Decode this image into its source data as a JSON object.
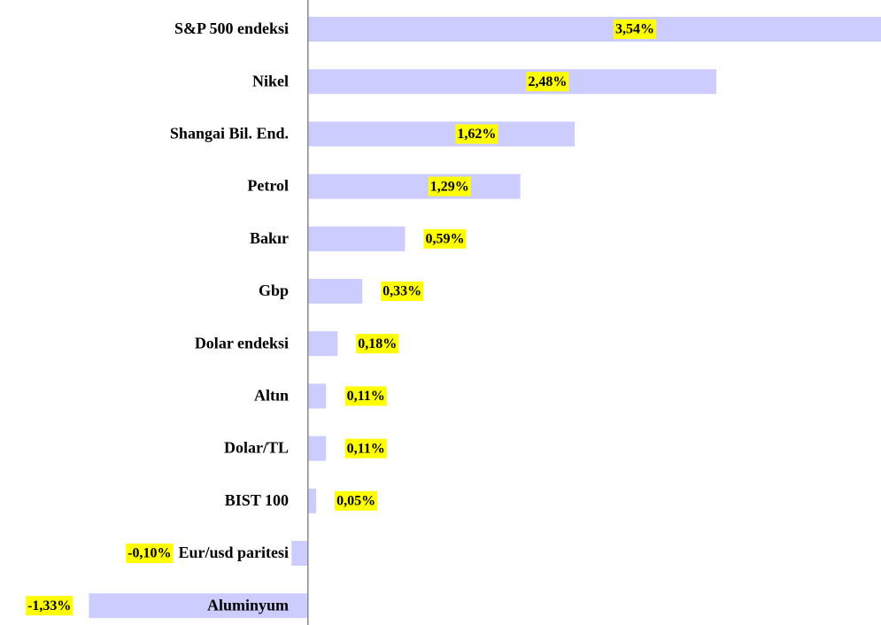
{
  "chart_data": {
    "type": "barh",
    "categories": [
      "S&P 500 endeksi",
      "Nikel",
      "Shangai Bil. End.",
      "Petrol",
      "Bakır",
      "Gbp",
      "Dolar endeksi",
      "Altın",
      "Dolar/TL",
      "BIST 100",
      "Eur/usd paritesi",
      "Aluminyum"
    ],
    "values": [
      3.54,
      2.48,
      1.62,
      1.29,
      0.59,
      0.33,
      0.18,
      0.11,
      0.11,
      0.05,
      -0.1,
      -1.33
    ],
    "value_labels": [
      "3,54%",
      "2,48%",
      "1,62%",
      "1,29%",
      "0,59%",
      "0,33%",
      "0,18%",
      "0,11%",
      "0,11%",
      "0,05%",
      "-0,10%",
      "-1,33%"
    ],
    "color": "#ccccff",
    "label_background": "#ffff00",
    "xlim": [
      -1.87,
      3.48
    ]
  }
}
